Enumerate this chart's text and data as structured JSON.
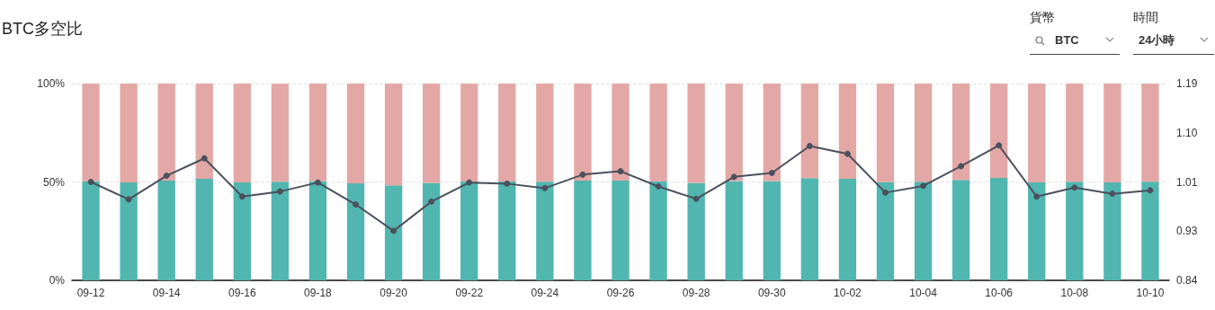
{
  "chart_data": {
    "type": "bar",
    "title": "BTC多空比",
    "stacked": true,
    "categories": [
      "09-12",
      null,
      "09-14",
      null,
      "09-16",
      null,
      "09-18",
      null,
      "09-20",
      null,
      "09-22",
      null,
      "09-24",
      null,
      "09-26",
      null,
      "09-28",
      null,
      "09-30",
      null,
      "10-02",
      null,
      "10-04",
      null,
      "10-06",
      null,
      "10-08",
      null,
      "10-10"
    ],
    "series": [
      {
        "color": "#52b6b0",
        "values": [
          50.4,
          49.8,
          50.7,
          51.6,
          49.8,
          50.1,
          50.4,
          49.3,
          48.3,
          49.6,
          50.2,
          50.2,
          50.1,
          50.7,
          50.7,
          50.2,
          49.6,
          50.5,
          50.5,
          51.9,
          51.6,
          49.9,
          50.1,
          51.0,
          52.0,
          49.8,
          50.1,
          49.8,
          50.1
        ]
      },
      {
        "color": "#e3a8a6",
        "values": [
          49.6,
          50.2,
          49.3,
          48.4,
          50.2,
          49.9,
          49.6,
          50.7,
          51.7,
          50.4,
          49.8,
          49.8,
          49.9,
          49.3,
          49.3,
          49.8,
          50.4,
          49.5,
          49.5,
          48.1,
          48.4,
          50.1,
          49.9,
          49.0,
          48.0,
          50.2,
          49.9,
          50.2,
          49.9
        ]
      },
      {
        "type": "line",
        "axis": "y2",
        "color": "#4a505c",
        "marker": "circle",
        "values": [
          1.015,
          0.984,
          1.026,
          1.057,
          0.989,
          0.998,
          1.014,
          0.975,
          0.928,
          0.98,
          1.014,
          1.012,
          1.004,
          1.028,
          1.034,
          1.007,
          0.985,
          1.024,
          1.031,
          1.079,
          1.065,
          0.996,
          1.008,
          1.043,
          1.08,
          0.989,
          1.005,
          0.994,
          1.0
        ]
      }
    ],
    "ylim": [
      0,
      100
    ],
    "yticks": [
      {
        "value": 0,
        "label": "0%"
      },
      {
        "value": 50,
        "label": "50%"
      },
      {
        "value": 100,
        "label": "100%"
      }
    ],
    "y2lim": [
      0.84,
      1.19
    ],
    "y2ticks": [
      0.84,
      {
        "value": 0.9275,
        "label": "0.93"
      },
      {
        "value": 1.015,
        "label": "1.01"
      },
      {
        "value": 1.1025,
        "label": "1.10"
      },
      1.19
    ],
    "grid": "y",
    "annotations": [
      "貨幣",
      "BTC",
      "時間",
      "24小時"
    ]
  }
}
